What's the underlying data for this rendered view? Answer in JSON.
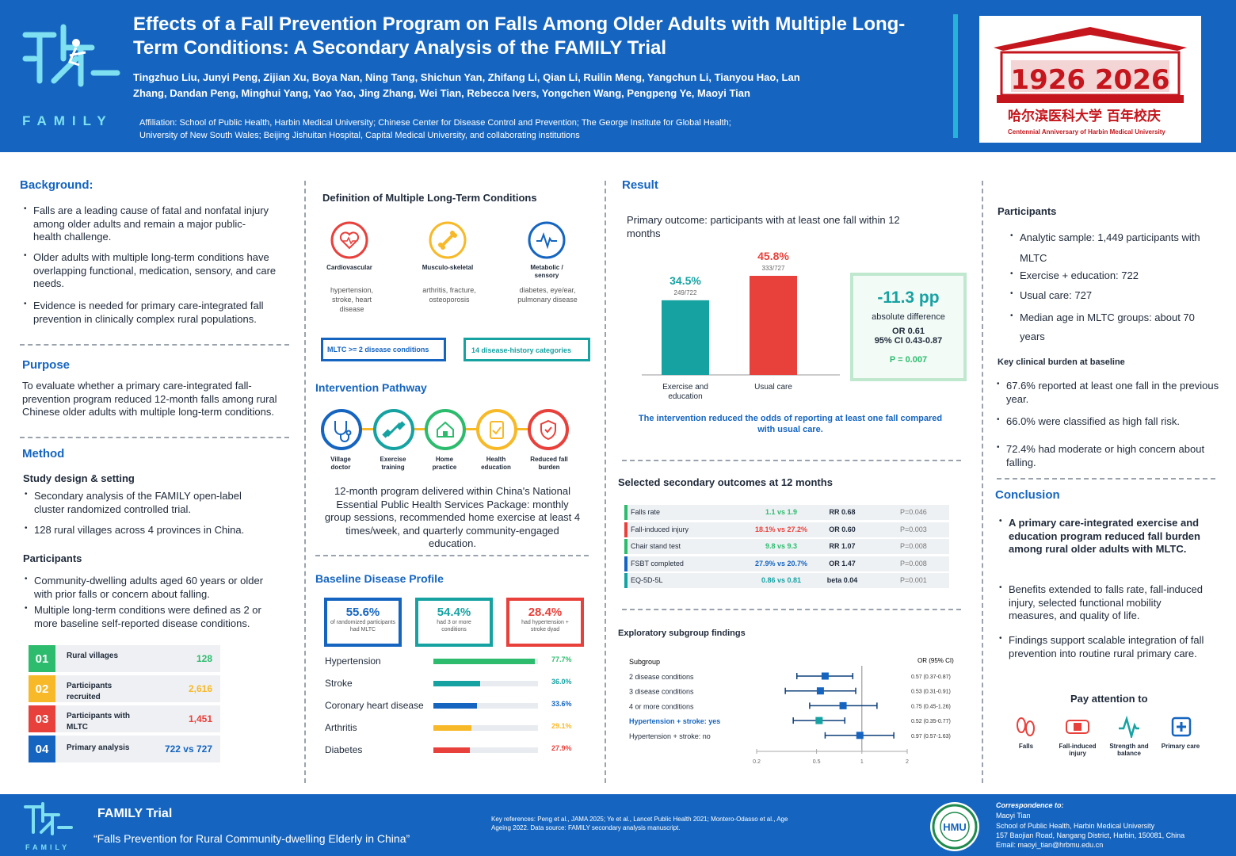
{
  "header": {
    "title": "Effects of a Fall Prevention Program on Falls Among Older Adults with Multiple Long-Term Conditions: A Secondary Analysis of the FAMILY Trial",
    "authors": "Tingzhuo Liu, Junyi Peng, Zijian Xu, Boya Nan, Ning Tang, Shichun Yan, Zhifang Li, Qian Li, Ruilin Meng, Yangchun Li, Tianyou Hao, Lan Zhang, Dandan Peng, Minghui Yang, Yao Yao, Jing Zhang, Wei Tian, Rebecca Ivers, Yongchen Wang, Pengpeng Ye, Maoyi Tian",
    "affiliation": "Affiliation: School of Public Health, Harbin Medical University; Chinese Center for Disease Control and Prevention; The George Institute for Global Health; University of New South Wales; Beijing Jishuitan Hospital, Capital Medical University, and collaborating institutions",
    "logo_text": "FAMILY",
    "right_logo_years": "1926 2026",
    "right_logo_cn": "哈尔滨医科大学 百年校庆",
    "right_logo_en": "Centennial Anniversary of Harbin Medical University",
    "colors": {
      "header_bg": "#1565c0",
      "accent": "#27b3d8",
      "red": "#c4161c"
    }
  },
  "background": {
    "heading": "Background:",
    "bullets": [
      "Falls are a leading cause of fatal and nonfatal injury among older adults and remain a major public-health challenge.",
      "Older adults with multiple long-term conditions have overlapping functional, medication, sensory, and care needs.",
      "Evidence is needed for primary care-integrated fall prevention in clinically complex rural populations."
    ]
  },
  "purpose": {
    "heading": "Purpose",
    "text": "To evaluate whether a primary care-integrated fall-prevention program reduced 12-month falls among rural Chinese older adults with multiple long-term conditions."
  },
  "method": {
    "heading": "Method",
    "design_heading": "Study design & setting",
    "design_bullets": [
      "Secondary analysis of the FAMILY open-label cluster randomized controlled trial.",
      "128 rural villages across 4 provinces in China."
    ],
    "participants_heading": "Participants",
    "participants_bullets": [
      "Community-dwelling adults aged 60 years or older with prior falls or concern about falling.",
      "Multiple long-term conditions were defined as 2 or more baseline self-reported disease conditions."
    ],
    "stats": [
      {
        "num": "01",
        "label": "Rural villages",
        "value": "128",
        "color": "#2dbb6e"
      },
      {
        "num": "02",
        "label": "Participants recruited",
        "value": "2,616",
        "color": "#f7b928"
      },
      {
        "num": "03",
        "label": "Participants with MLTC",
        "value": "1,451",
        "color": "#e8413c"
      },
      {
        "num": "04",
        "label": "Primary analysis",
        "value": "722 vs 727",
        "color": "#1565c0"
      }
    ]
  },
  "definition": {
    "heading": "Definition of Multiple Long-Term Conditions",
    "categories": [
      {
        "icon": "heart-icon",
        "title": "Cardiovascular",
        "desc": "hypertension, stroke, heart disease",
        "color": "#e8413c"
      },
      {
        "icon": "bone-icon",
        "title": "Musculo-skeletal",
        "desc": "arthritis, fracture, osteoporosis",
        "color": "#f7b928"
      },
      {
        "icon": "pulse-icon",
        "title": "Metabolic / sensory",
        "desc": "diabetes, eye/ear, pulmonary disease",
        "color": "#1565c0"
      }
    ],
    "box1": "MLTC >= 2 disease conditions",
    "box2": "14 disease-history categories"
  },
  "pathway": {
    "heading": "Intervention Pathway",
    "steps": [
      {
        "icon": "stethoscope-icon",
        "label": "Village doctor",
        "color": "#1565c0"
      },
      {
        "icon": "dumbbell-icon",
        "label": "Exercise training",
        "color": "#17a2a2"
      },
      {
        "icon": "home-icon",
        "label": "Home practice",
        "color": "#2dbb6e"
      },
      {
        "icon": "clipboard-icon",
        "label": "Health education",
        "color": "#f7b928"
      },
      {
        "icon": "shield-icon",
        "label": "Reduced fall burden",
        "color": "#e8413c"
      }
    ],
    "text": "12-month program delivered within China's National Essential Public Health Services Package: monthly group sessions, recommended home exercise at least 4 times/week, and quarterly community-engaged education."
  },
  "baseline": {
    "heading": "Baseline Disease Profile",
    "cards": [
      {
        "value": "55.6%",
        "desc": "of randomized participants had MLTC",
        "color": "#1565c0"
      },
      {
        "value": "54.4%",
        "desc": "had 3 or more conditions",
        "color": "#17a2a2"
      },
      {
        "value": "28.4%",
        "desc": "had hypertension + stroke dyad",
        "color": "#e8413c"
      }
    ],
    "bars": [
      {
        "label": "Hypertension",
        "value": 77.7,
        "text": "77.7%",
        "color": "#2dbb6e"
      },
      {
        "label": "Stroke",
        "value": 36.0,
        "text": "36.0%",
        "color": "#17a2a2"
      },
      {
        "label": "Coronary heart disease",
        "value": 33.6,
        "text": "33.6%",
        "color": "#1565c0"
      },
      {
        "label": "Arthritis",
        "value": 29.1,
        "text": "29.1%",
        "color": "#f7b928"
      },
      {
        "label": "Diabetes",
        "value": 27.9,
        "text": "27.9%",
        "color": "#e8413c"
      }
    ]
  },
  "result": {
    "heading": "Result",
    "primary_label": "Primary outcome: participants with at least one fall within 12 months",
    "effect": {
      "value": "-11.3 pp",
      "label": "absolute difference",
      "or": "OR 0.61",
      "ci": "95% CI 0.43-0.87",
      "p": "P = 0.007"
    },
    "conclusion": "The intervention reduced the odds of reporting at least one fall compared with usual care."
  },
  "chart_data": {
    "type": "bar",
    "categories": [
      "Exercise and education",
      "Usual care"
    ],
    "values": [
      34.5,
      45.8
    ],
    "value_labels": [
      "34.5%",
      "45.8%"
    ],
    "count_labels": [
      "249/722",
      "333/727"
    ],
    "colors": [
      "#17a2a2",
      "#e8413c"
    ],
    "ylim": [
      0,
      50
    ]
  },
  "secondary": {
    "heading": "Selected secondary outcomes at 12 months",
    "rows": [
      {
        "name": "Falls rate",
        "values": "1.1 vs 1.9",
        "stat": "RR 0.68",
        "p": "P=0.046",
        "color": "#2dbb6e"
      },
      {
        "name": "Fall-induced injury",
        "values": "18.1% vs 27.2%",
        "stat": "OR 0.60",
        "p": "P=0.003",
        "color": "#e8413c"
      },
      {
        "name": "Chair stand test",
        "values": "9.8 vs 9.3",
        "stat": "RR 1.07",
        "p": "P=0.008",
        "color": "#2dbb6e"
      },
      {
        "name": "FSBT completed",
        "values": "27.9% vs 20.7%",
        "stat": "OR 1.47",
        "p": "P=0.008",
        "color": "#1565c0"
      },
      {
        "name": "EQ-5D-5L",
        "values": "0.86 vs 0.81",
        "stat": "beta 0.04",
        "p": "P=0.001",
        "color": "#17a2a2"
      }
    ]
  },
  "subgroup": {
    "heading": "Exploratory subgroup findings",
    "col1": "Subgroup",
    "col2": "OR (95% CI)",
    "rows": [
      {
        "name": "2 disease conditions",
        "or": 0.57,
        "lo": 0.37,
        "hi": 0.87,
        "text": "0.57 (0.37-0.87)",
        "highlight": false
      },
      {
        "name": "3 disease conditions",
        "or": 0.53,
        "lo": 0.31,
        "hi": 0.91,
        "text": "0.53 (0.31-0.91)",
        "highlight": false
      },
      {
        "name": "4 or more conditions",
        "or": 0.75,
        "lo": 0.45,
        "hi": 1.26,
        "text": "0.75 (0.45-1.26)",
        "highlight": false
      },
      {
        "name": "Hypertension + stroke: yes",
        "or": 0.52,
        "lo": 0.35,
        "hi": 0.77,
        "text": "0.52 (0.35-0.77)",
        "highlight": true
      },
      {
        "name": "Hypertension + stroke: no",
        "or": 0.97,
        "lo": 0.57,
        "hi": 1.63,
        "text": "0.97 (0.57-1.63)",
        "highlight": false
      }
    ],
    "ticks": [
      "0.2",
      "0.5",
      "1",
      "2"
    ]
  },
  "participants": {
    "heading": "Participants",
    "bullets": [
      "Analytic sample: 1,449 participants with MLTC",
      "Exercise + education: 722",
      "Usual care: 727",
      "Median age in MLTC groups: about 70 years"
    ],
    "burden_heading": "Key clinical burden at baseline",
    "burden": [
      {
        "text": "67.6% reported at least one fall in the previous year.",
        "color": "#17a2a2"
      },
      {
        "text": "66.0% were classified as high fall risk.",
        "color": "#e8413c"
      },
      {
        "text": "72.4% had moderate or high concern about falling.",
        "color": "#f7b928"
      }
    ]
  },
  "conclusion": {
    "heading": "Conclusion",
    "bold": "A primary care-integrated exercise and education program reduced fall burden among rural older adults with MLTC.",
    "bullets": [
      "Benefits extended to falls rate, fall-induced injury, selected functional mobility measures, and quality of life.",
      "Findings support scalable integration of fall prevention into routine rural primary care."
    ],
    "pay_heading": "Pay attention to",
    "pay_items": [
      {
        "icon": "footprints-icon",
        "label": "Falls",
        "color": "#e8413c"
      },
      {
        "icon": "bandage-icon",
        "label": "Fall-induced injury",
        "color": "#e8413c"
      },
      {
        "icon": "pulse-icon",
        "label": "Strength and balance",
        "color": "#17a2a2"
      },
      {
        "icon": "hospital-icon",
        "label": "Primary care",
        "color": "#1565c0"
      }
    ]
  },
  "footer": {
    "title": "FAMILY Trial",
    "subtitle": "“Falls Prevention for Rural Community-dwelling Elderly in China”",
    "refs": "Key references: Peng et al., JAMA 2025; Ye et al., Lancet Public Health 2021; Montero-Odasso et al., Age Ageing 2022. Data source: FAMILY secondary analysis manuscript.",
    "seal_text": "HMU",
    "corr_heading": "Correspondence to:",
    "corr_name": "Maoyi Tian",
    "corr_org": "School of Public Health, Harbin Medical University",
    "corr_addr": "157 Baojian Road, Nangang District, Harbin, 150081, China",
    "corr_email": "Email: maoyi_tian@hrbmu.edu.cn"
  }
}
